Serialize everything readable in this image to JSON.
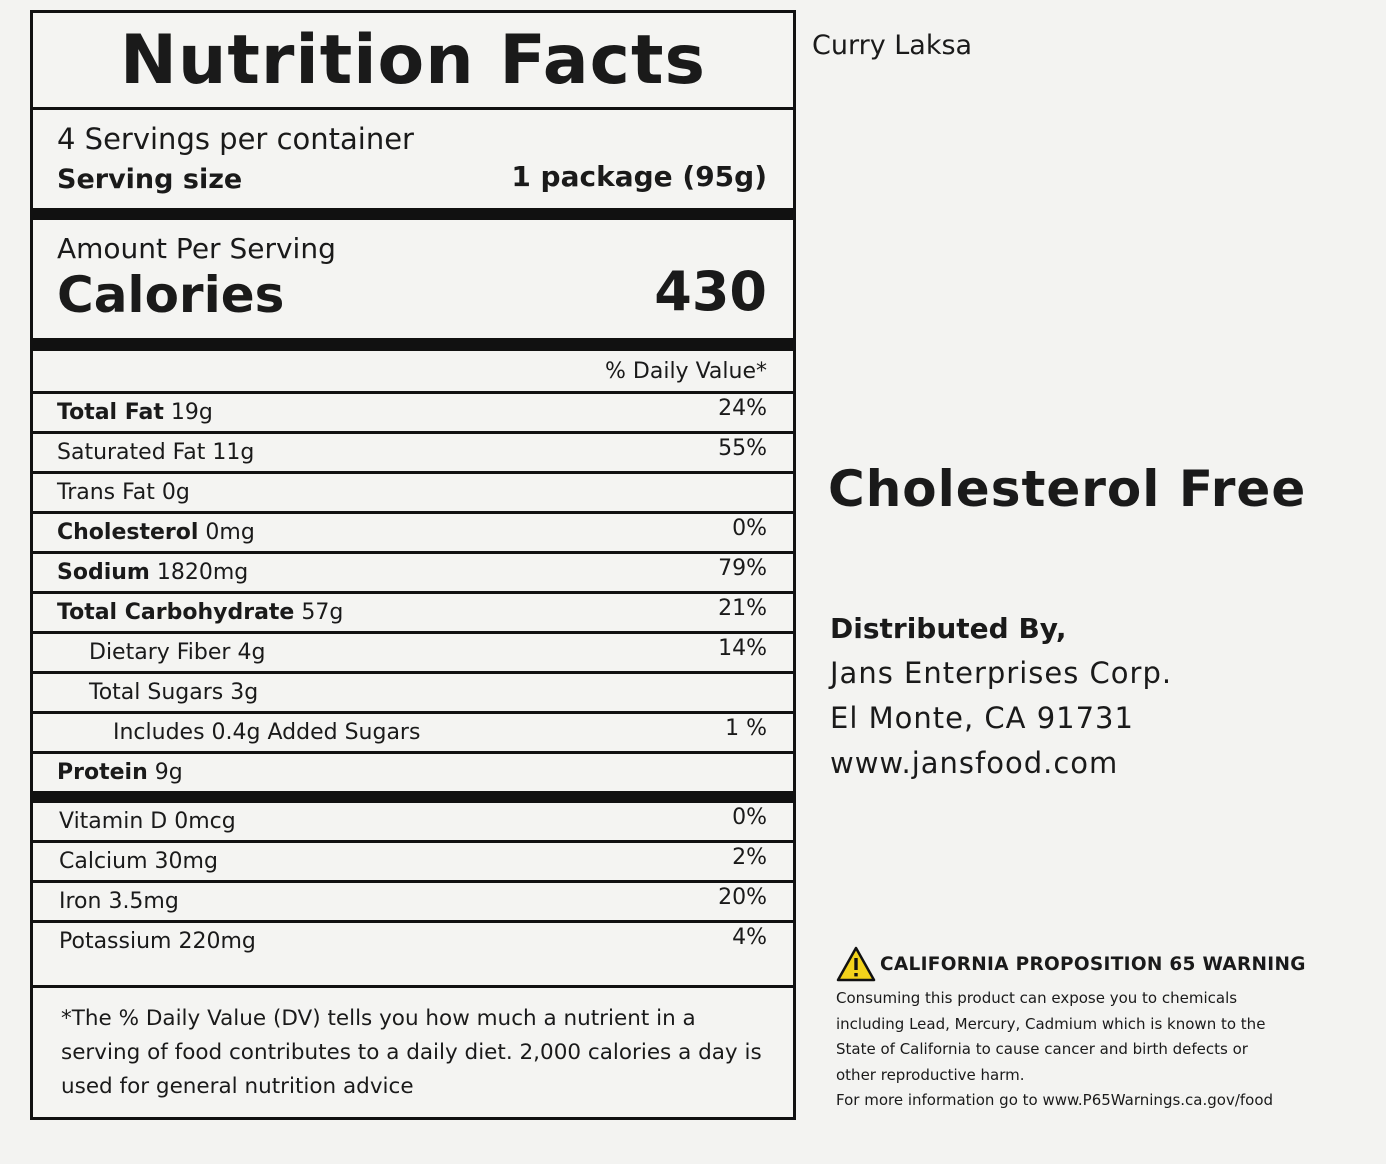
{
  "label": {
    "title": "Nutrition Facts",
    "servings_per_container": "4 Servings per container",
    "serving_size_label": "Serving size",
    "serving_size_value": "1 package (95g)",
    "amount_per_serving": "Amount Per Serving",
    "calories_label": "Calories",
    "calories_value": "430",
    "daily_value_header": "% Daily Value*",
    "nutrients": [
      {
        "name": "Total Fat",
        "amount": "19g",
        "dv": "24%"
      },
      {
        "name": "Saturated Fat 11g",
        "dv": "55%"
      },
      {
        "name": "Trans Fat 0g",
        "dv": ""
      },
      {
        "name": "Cholesterol",
        "amount": "0mg",
        "dv": "0%"
      },
      {
        "name": "Sodium",
        "amount": "1820mg",
        "dv": "79%"
      },
      {
        "name": "Total Carbohydrate",
        "amount": "57g",
        "dv": "21%"
      },
      {
        "name": "Dietary Fiber 4g",
        "dv": "14%"
      },
      {
        "name": "Total Sugars 3g",
        "dv": ""
      },
      {
        "name": "Includes 0.4g Added Sugars",
        "dv": "1 %"
      },
      {
        "name": "Protein",
        "amount": "9g",
        "dv": ""
      }
    ],
    "vitamins": [
      {
        "name": "Vitamin D 0mcg",
        "dv": "0%"
      },
      {
        "name": "Calcium 30mg",
        "dv": "2%"
      },
      {
        "name": "Iron 3.5mg",
        "dv": "20%"
      },
      {
        "name": "Potassium 220mg",
        "dv": "4%"
      }
    ],
    "footnote": "*The % Daily Value (DV) tells you how much a nutrient in a serving of food contributes to a daily diet. 2,000 calories a day is used for general nutrition advice"
  },
  "product_name": "Curry Laksa",
  "claim": "Cholesterol Free",
  "distributor": {
    "heading": "Distributed By,",
    "company": "Jans Enterprises Corp.",
    "address": "El Monte, CA 91731",
    "website": "www.jansfood.com"
  },
  "warning": {
    "icon": "warning-triangle-icon",
    "heading": "CALIFORNIA PROPOSITION 65 WARNING",
    "line1": "Consuming this product can expose you to chemicals",
    "line2": "including Lead, Mercury, Cadmium which is known to the",
    "line3": "State of California to cause cancer and birth defects or",
    "line4": "other reproductive harm.",
    "line5": "For more information go to www.P65Warnings.ca.gov/food"
  },
  "colors": {
    "warning_yellow": "#f2d21b",
    "ink": "#111111"
  }
}
